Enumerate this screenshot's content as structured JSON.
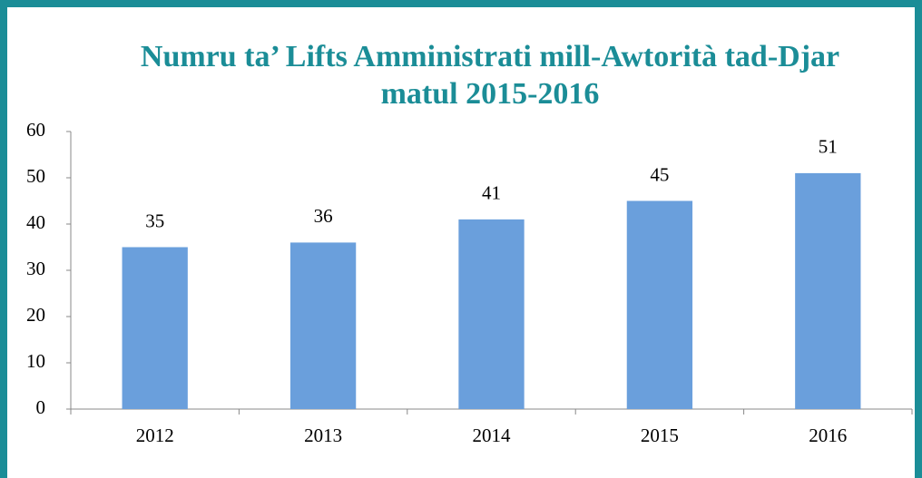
{
  "chart_data": {
    "type": "bar",
    "title": "Numru ta’ Lifts Amministrati mill-Awtorità tad-Djar matul 2015-2016",
    "categories": [
      "2012",
      "2013",
      "2014",
      "2015",
      "2016"
    ],
    "values": [
      35,
      36,
      41,
      45,
      51
    ],
    "color": "#6a9fdc",
    "ylim": [
      0,
      60
    ],
    "yticks": [
      0,
      10,
      20,
      30,
      40,
      50,
      60
    ],
    "grid": false
  }
}
